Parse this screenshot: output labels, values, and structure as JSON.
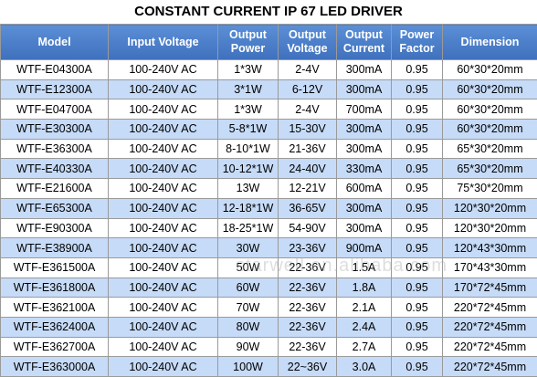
{
  "title": "CONSTANT CURRENT IP 67 LED DRIVER",
  "watermark": "starwell.en.alibaba.com",
  "table": {
    "headers": [
      "Model",
      "Input Voltage",
      "Output Power",
      "Output Voltage",
      "Output Current",
      "Power Factor",
      "Dimension"
    ],
    "rows": [
      [
        "WTF-E04300A",
        "100-240V AC",
        "1*3W",
        "2-4V",
        "300mA",
        "0.95",
        "60*30*20mm"
      ],
      [
        "WTF-E12300A",
        "100-240V AC",
        "3*1W",
        "6-12V",
        "300mA",
        "0.95",
        "60*30*20mm"
      ],
      [
        "WTF-E04700A",
        "100-240V AC",
        "1*3W",
        "2-4V",
        "700mA",
        "0.95",
        "60*30*20mm"
      ],
      [
        "WTF-E30300A",
        "100-240V AC",
        "5-8*1W",
        "15-30V",
        "300mA",
        "0.95",
        "60*30*20mm"
      ],
      [
        "WTF-E36300A",
        "100-240V AC",
        "8-10*1W",
        "21-36V",
        "300mA",
        "0.95",
        "65*30*20mm"
      ],
      [
        "WTF-E40330A",
        "100-240V AC",
        "10-12*1W",
        "24-40V",
        "330mA",
        "0.95",
        "65*30*20mm"
      ],
      [
        "WTF-E21600A",
        "100-240V AC",
        "13W",
        "12-21V",
        "600mA",
        "0.95",
        "75*30*20mm"
      ],
      [
        "WTF-E65300A",
        "100-240V AC",
        "12-18*1W",
        "36-65V",
        "300mA",
        "0.95",
        "120*30*20mm"
      ],
      [
        "WTF-E90300A",
        "100-240V AC",
        "18-25*1W",
        "54-90V",
        "300mA",
        "0.95",
        "120*30*20mm"
      ],
      [
        "WTF-E38900A",
        "100-240V AC",
        "30W",
        "23-36V",
        "900mA",
        "0.95",
        "120*43*30mm"
      ],
      [
        "WTF-E361500A",
        "100-240V AC",
        "50W",
        "22-36V",
        "1.5A",
        "0.95",
        "170*43*30mm"
      ],
      [
        "WTF-E361800A",
        "100-240V AC",
        "60W",
        "22-36V",
        "1.8A",
        "0.95",
        "170*72*45mm"
      ],
      [
        "WTF-E362100A",
        "100-240V AC",
        "70W",
        "22-36V",
        "2.1A",
        "0.95",
        "220*72*45mm"
      ],
      [
        "WTF-E362400A",
        "100-240V AC",
        "80W",
        "22-36V",
        "2.4A",
        "0.95",
        "220*72*45mm"
      ],
      [
        "WTF-E362700A",
        "100-240V AC",
        "90W",
        "22-36V",
        "2.7A",
        "0.95",
        "220*72*45mm"
      ],
      [
        "WTF-E363000A",
        "100-240V AC",
        "100W",
        "22~36V",
        "3.0A",
        "0.95",
        "220*72*45mm"
      ]
    ]
  }
}
